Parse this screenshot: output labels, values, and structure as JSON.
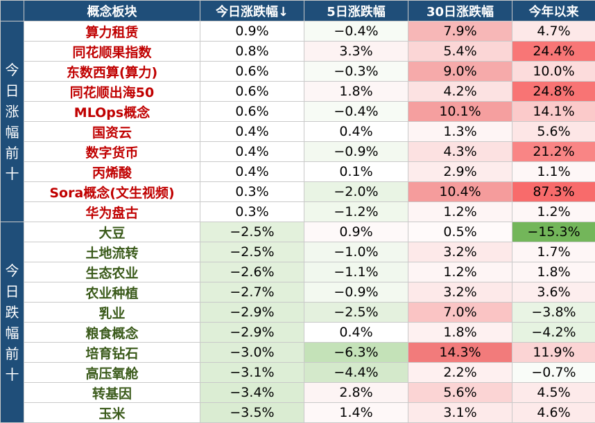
{
  "headers": [
    "概念板块",
    "今日涨跌幅↓",
    "5日涨跌幅",
    "30日涨跌幅",
    "今年以来"
  ],
  "groups": [
    {
      "label": [
        "今",
        "日",
        "涨",
        "幅",
        "前",
        "十"
      ],
      "kind": "up",
      "rows": [
        {
          "name": "算力租赁",
          "d1": "0.9%",
          "d5": "−0.4%",
          "d30": "7.9%",
          "ytd": "4.7%",
          "c1": "#ffffff",
          "c5": "#f7fbf5",
          "c30": "#f7b7b7",
          "cy": "#fde8e8"
        },
        {
          "name": "同花顺果指数",
          "d1": "0.8%",
          "d5": "3.3%",
          "d30": "5.4%",
          "ytd": "24.4%",
          "c1": "#ffffff",
          "c5": "#fdf3f3",
          "c30": "#fbd6d6",
          "cy": "#f87676"
        },
        {
          "name": "东数西算(算力)",
          "d1": "0.6%",
          "d5": "−0.3%",
          "d30": "9.0%",
          "ytd": "10.0%",
          "c1": "#ffffff",
          "c5": "#f8fbf6",
          "c30": "#f6aaaa",
          "cy": "#fcdcdc"
        },
        {
          "name": "同花顺出海50",
          "d1": "0.6%",
          "d5": "1.8%",
          "d30": "4.2%",
          "ytd": "24.8%",
          "c1": "#ffffff",
          "c5": "#fdf6f6",
          "c30": "#fce2e2",
          "cy": "#f87474"
        },
        {
          "name": "MLOps概念",
          "d1": "0.6%",
          "d5": "−0.4%",
          "d30": "10.1%",
          "ytd": "14.1%",
          "c1": "#ffffff",
          "c5": "#f7fbf5",
          "c30": "#f59f9f",
          "cy": "#fbcaca"
        },
        {
          "name": "国资云",
          "d1": "0.4%",
          "d5": "0.4%",
          "d30": "1.3%",
          "ytd": "5.6%",
          "c1": "#ffffff",
          "c5": "#ffffff",
          "c30": "#fef5f5",
          "cy": "#fde6e6"
        },
        {
          "name": "数字货币",
          "d1": "0.4%",
          "d5": "−0.9%",
          "d30": "4.3%",
          "ytd": "21.2%",
          "c1": "#ffffff",
          "c5": "#f3f9f0",
          "c30": "#fce1e1",
          "cy": "#f98585"
        },
        {
          "name": "丙烯酸",
          "d1": "0.4%",
          "d5": "0.1%",
          "d30": "2.9%",
          "ytd": "1.1%",
          "c1": "#ffffff",
          "c5": "#ffffff",
          "c30": "#fdecec",
          "cy": "#fef7f7"
        },
        {
          "name": "Sora概念(文生视频)",
          "d1": "0.3%",
          "d5": "−2.0%",
          "d30": "10.4%",
          "ytd": "87.3%",
          "c1": "#ffffff",
          "c5": "#e9f4e4",
          "c30": "#f59c9c",
          "cy": "#f86b6b"
        },
        {
          "name": "华为盘古",
          "d1": "0.3%",
          "d5": "−1.2%",
          "d30": "1.2%",
          "ytd": "1.2%",
          "c1": "#ffffff",
          "c5": "#f0f8ec",
          "c30": "#fef5f5",
          "cy": "#fef7f7"
        }
      ]
    },
    {
      "label": [
        "今",
        "日",
        "跌",
        "幅",
        "前",
        "十"
      ],
      "kind": "down",
      "rows": [
        {
          "name": "大豆",
          "d1": "−2.5%",
          "d5": "0.9%",
          "d30": "0.5%",
          "ytd": "−15.3%",
          "c1": "#e3f1dc",
          "c5": "#fef9f9",
          "c30": "#fffafa",
          "cy": "#73b65a"
        },
        {
          "name": "土地流转",
          "d1": "−2.5%",
          "d5": "−1.0%",
          "d30": "3.2%",
          "ytd": "1.7%",
          "c1": "#e3f1dc",
          "c5": "#f2f8ef",
          "c30": "#fde9e9",
          "cy": "#fef6f6"
        },
        {
          "name": "生态农业",
          "d1": "−2.6%",
          "d5": "−1.1%",
          "d30": "1.2%",
          "ytd": "1.8%",
          "c1": "#e2f0db",
          "c5": "#f1f8ee",
          "c30": "#fef5f5",
          "cy": "#fef6f6"
        },
        {
          "name": "农业种植",
          "d1": "−2.7%",
          "d5": "−0.9%",
          "d30": "3.2%",
          "ytd": "3.6%",
          "c1": "#e1f0da",
          "c5": "#f3f9f0",
          "c30": "#fde9e9",
          "cy": "#fdeeee"
        },
        {
          "name": "乳业",
          "d1": "−2.9%",
          "d5": "−2.5%",
          "d30": "7.0%",
          "ytd": "−3.8%",
          "c1": "#dfefd8",
          "c5": "#e4f1de",
          "c30": "#fac4c4",
          "cy": "#e9f4e4"
        },
        {
          "name": "粮食概念",
          "d1": "−2.9%",
          "d5": "0.4%",
          "d30": "1.8%",
          "ytd": "−4.2%",
          "c1": "#dfefd8",
          "c5": "#ffffff",
          "c30": "#fef1f1",
          "cy": "#e6f3e1"
        },
        {
          "name": "培育钻石",
          "d1": "−3.0%",
          "d5": "−6.3%",
          "d30": "14.3%",
          "ytd": "11.9%",
          "c1": "#deeed7",
          "c5": "#c4e2b8",
          "c30": "#f27b7b",
          "cy": "#fbd4d4"
        },
        {
          "name": "高压氧舱",
          "d1": "−3.1%",
          "d5": "−4.4%",
          "d30": "2.2%",
          "ytd": "−0.7%",
          "c1": "#ddeed6",
          "c5": "#d4e9cb",
          "c30": "#fef0f0",
          "cy": "#f9fcf8"
        },
        {
          "name": "转基因",
          "d1": "−3.4%",
          "d5": "2.8%",
          "d30": "5.6%",
          "ytd": "4.5%",
          "c1": "#dbedd3",
          "c5": "#fdf4f4",
          "c30": "#fbd4d4",
          "cy": "#fdeaea"
        },
        {
          "name": "玉米",
          "d1": "−3.5%",
          "d5": "1.4%",
          "d30": "3.1%",
          "ytd": "4.6%",
          "c1": "#daecd2",
          "c5": "#fef8f8",
          "c30": "#fdeaea",
          "cy": "#fdeaea"
        }
      ]
    }
  ]
}
